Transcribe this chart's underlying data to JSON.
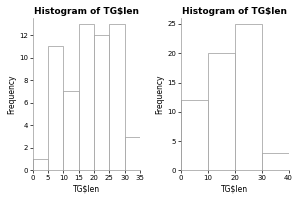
{
  "left_hist": {
    "title": "Histogram of TG$len",
    "xlabel": "TG$len",
    "ylabel": "Frequency",
    "bins": [
      0,
      5,
      10,
      15,
      20,
      25,
      30,
      35
    ],
    "counts": [
      1,
      11,
      7,
      13,
      12,
      13,
      3
    ],
    "ylim": [
      0,
      13.5
    ],
    "yticks": [
      0,
      2,
      4,
      6,
      8,
      10,
      12
    ],
    "xticks": [
      0,
      5,
      10,
      15,
      20,
      25,
      30,
      35
    ]
  },
  "right_hist": {
    "title": "Histogram of TG$len",
    "xlabel": "TG$len",
    "ylabel": "Frequency",
    "bins": [
      0,
      10,
      20,
      30,
      40
    ],
    "counts": [
      12,
      20,
      25,
      3
    ],
    "ylim": [
      0,
      26
    ],
    "yticks": [
      0,
      5,
      10,
      15,
      20,
      25
    ],
    "xticks": [
      0,
      10,
      20,
      30,
      40
    ]
  },
  "bar_color": "white",
  "edge_color": "#999999",
  "bg_color": "white",
  "title_fontsize": 6.5,
  "label_fontsize": 5.5,
  "tick_fontsize": 5.0
}
